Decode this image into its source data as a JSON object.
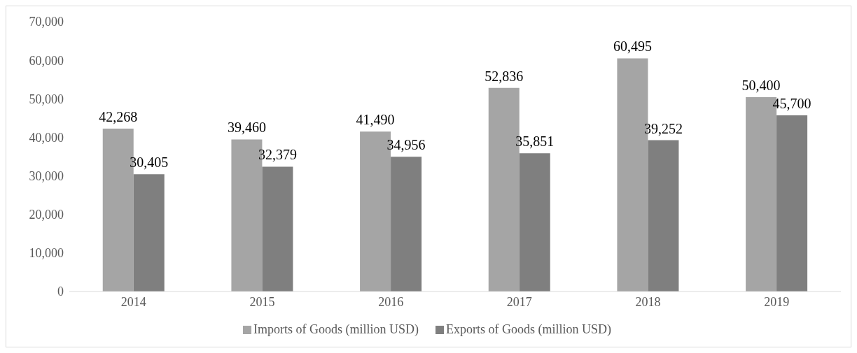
{
  "chart_data": {
    "type": "bar",
    "categories": [
      "2014",
      "2015",
      "2016",
      "2017",
      "2018",
      "2019"
    ],
    "series": [
      {
        "name": "Imports of Goods (million USD)",
        "color": "#a5a5a5",
        "values": [
          42268,
          39460,
          41490,
          52836,
          60495,
          50400
        ],
        "value_labels": [
          "42,268",
          "39,460",
          "41,490",
          "52,836",
          "60,495",
          "50,400"
        ]
      },
      {
        "name": "Exports of Goods (million USD)",
        "color": "#7f7f7f",
        "values": [
          30405,
          32379,
          34956,
          35851,
          39252,
          45700
        ],
        "value_labels": [
          "30,405",
          "32,379",
          "34,956",
          "35,851",
          "39,252",
          "45,700"
        ]
      }
    ],
    "ylim": [
      0,
      70000
    ],
    "yticks": [
      {
        "value": 0,
        "label": "0"
      },
      {
        "value": 10000,
        "label": "10,000"
      },
      {
        "value": 20000,
        "label": "20,000"
      },
      {
        "value": 30000,
        "label": "30,000"
      },
      {
        "value": 40000,
        "label": "40,000"
      },
      {
        "value": 50000,
        "label": "50,000"
      },
      {
        "value": 60000,
        "label": "60,000"
      },
      {
        "value": 70000,
        "label": "70,000"
      }
    ],
    "legend": "bottom",
    "grid": false
  }
}
